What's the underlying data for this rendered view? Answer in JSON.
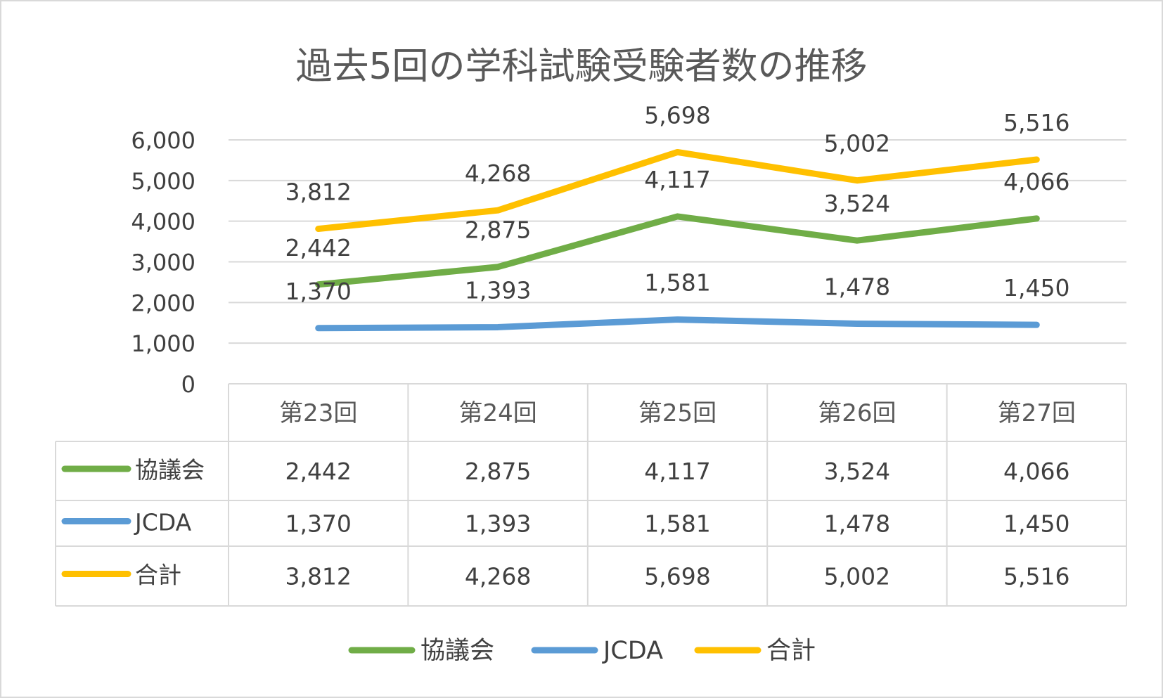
{
  "chart_data": {
    "type": "line",
    "title": "過去5回の学科試験受験者数の推移",
    "categories": [
      "第23回",
      "第24回",
      "第25回",
      "第26回",
      "第27回"
    ],
    "series": [
      {
        "name": "協議会",
        "values": [
          2442,
          2875,
          4117,
          3524,
          4066
        ],
        "color": "#70AD47",
        "labels": [
          "2,442",
          "2,875",
          "4,117",
          "3,524",
          "4,066"
        ]
      },
      {
        "name": "JCDA",
        "values": [
          1370,
          1393,
          1581,
          1478,
          1450
        ],
        "color": "#5B9BD5",
        "labels": [
          "1,370",
          "1,393",
          "1,581",
          "1,478",
          "1,450"
        ]
      },
      {
        "name": "合計",
        "values": [
          3812,
          4268,
          5698,
          5002,
          5516
        ],
        "color": "#FFC000",
        "labels": [
          "3,812",
          "4,268",
          "5,698",
          "5,002",
          "5,516"
        ]
      }
    ],
    "ylim": [
      0,
      6000
    ],
    "yticks": [
      0,
      1000,
      2000,
      3000,
      4000,
      5000,
      6000
    ],
    "ytick_labels": [
      "0",
      "1,000",
      "2,000",
      "3,000",
      "4,000",
      "5,000",
      "6,000"
    ],
    "grid": true,
    "data_table": true,
    "legend_position": "bottom",
    "data_labels": true
  }
}
